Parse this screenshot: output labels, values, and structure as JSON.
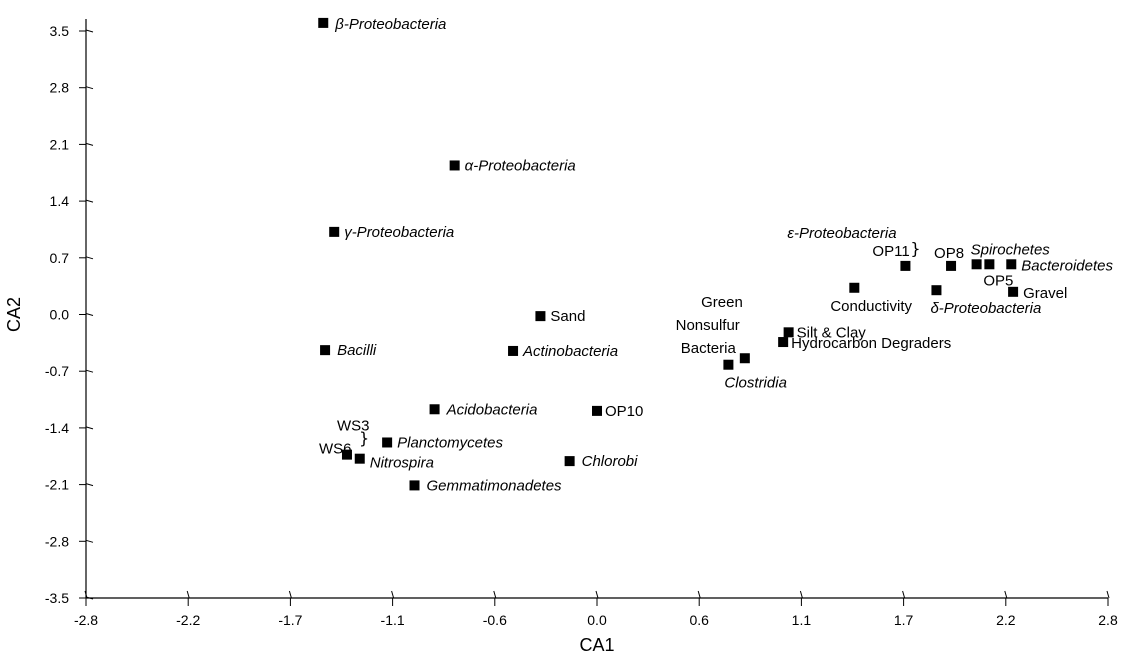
{
  "chart_data": {
    "type": "scatter",
    "xlabel": "CA1",
    "ylabel": "CA2",
    "xlim": [
      -2.8,
      2.8
    ],
    "ylim": [
      -3.5,
      3.5
    ],
    "xticks": [
      "-2.8",
      "-2.2",
      "-1.7",
      "-1.1",
      "-0.6",
      "0.0",
      "0.6",
      "1.1",
      "1.7",
      "2.2",
      "2.8"
    ],
    "yticks": [
      "3.5",
      "2.8",
      "2.1",
      "1.4",
      "0.7",
      "0.0",
      "-0.7",
      "-1.4",
      "-2.1",
      "-2.8",
      "-3.5"
    ],
    "grid": false,
    "points": [
      {
        "label": "β-Proteobacteria",
        "italic": true,
        "x": -1.5,
        "y": 3.6
      },
      {
        "label": "α-Proteobacteria",
        "italic": true,
        "x": -0.78,
        "y": 1.84
      },
      {
        "label": "γ-Proteobacteria",
        "italic": true,
        "x": -1.44,
        "y": 1.02
      },
      {
        "label": "Bacilli",
        "italic": true,
        "x": -1.49,
        "y": -0.44
      },
      {
        "label": "Sand",
        "italic": false,
        "x": -0.31,
        "y": -0.02
      },
      {
        "label": "Actinobacteria",
        "italic": true,
        "x": -0.46,
        "y": -0.45
      },
      {
        "label": "Acidobacteria",
        "italic": true,
        "x": -0.89,
        "y": -1.17
      },
      {
        "label": "OP10",
        "italic": false,
        "x": 0.0,
        "y": -1.19
      },
      {
        "label": "Planctomycetes",
        "italic": true,
        "x": -1.15,
        "y": -1.58
      },
      {
        "label": "Nitrospira",
        "italic": true,
        "x": -1.3,
        "y": -1.78
      },
      {
        "label": "WS3",
        "italic": false,
        "x": -1.37,
        "y": -1.73
      },
      {
        "label": "Chlorobi",
        "italic": true,
        "x": -0.15,
        "y": -1.81
      },
      {
        "label": "Gemmatimonadetes",
        "italic": true,
        "x": -1.0,
        "y": -2.11
      },
      {
        "label": "Clostridia",
        "italic": true,
        "x": 0.72,
        "y": -0.62
      },
      {
        "label": "Green Nonsulfur Bacteria",
        "italic": false,
        "x": 0.81,
        "y": -0.54
      },
      {
        "label": "Silt & Clay",
        "italic": false,
        "x": 1.05,
        "y": -0.22
      },
      {
        "label": "Hydrocarbon Degraders",
        "italic": false,
        "x": 1.02,
        "y": -0.34
      },
      {
        "label": "Conductivity",
        "italic": false,
        "x": 1.41,
        "y": 0.33
      },
      {
        "label": "OP11",
        "italic": false,
        "x": 1.69,
        "y": 0.6
      },
      {
        "label": "ε-Proteobacteria",
        "italic": true,
        "x": 1.69,
        "y": 0.6
      },
      {
        "label": "OP8",
        "italic": false,
        "x": 1.94,
        "y": 0.6
      },
      {
        "label": "Spirochetes",
        "italic": true,
        "x": 2.08,
        "y": 0.62
      },
      {
        "label": "OP5",
        "italic": false,
        "x": 2.15,
        "y": 0.62
      },
      {
        "label": "Bacteroidetes",
        "italic": true,
        "x": 2.27,
        "y": 0.62
      },
      {
        "label": "δ-Proteobacteria",
        "italic": true,
        "x": 1.86,
        "y": 0.3
      },
      {
        "label": "Gravel",
        "italic": false,
        "x": 2.28,
        "y": 0.28
      },
      {
        "label": "WS6",
        "italic": false,
        "x": -1.37,
        "y": -1.73
      }
    ],
    "label_lines": {
      "green_nonsulfur": [
        "Green",
        "Nonsulfur",
        "Bacteria"
      ]
    }
  }
}
